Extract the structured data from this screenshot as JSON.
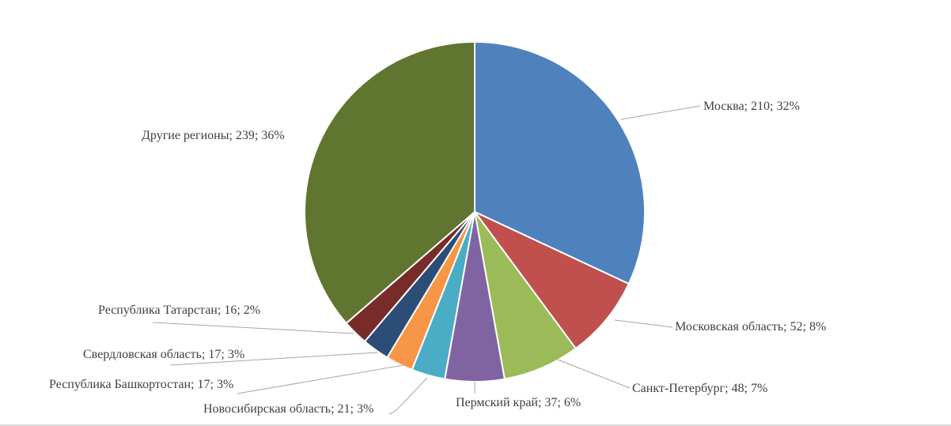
{
  "chart_data": {
    "type": "pie",
    "title": "",
    "start_angle_deg": 0,
    "direction": "clockwise",
    "slices": [
      {
        "label": "Москва",
        "value": 210,
        "percent": "32%",
        "display": "Москва; 210; 32%",
        "color": "#4F81BD"
      },
      {
        "label": "Московская область",
        "value": 52,
        "percent": "8%",
        "display": "Московская область; 52; 8%",
        "color": "#C0504D"
      },
      {
        "label": "Санкт-Петербург",
        "value": 48,
        "percent": "7%",
        "display": "Санкт-Петербург; 48; 7%",
        "color": "#9BBB59"
      },
      {
        "label": "Пермский край",
        "value": 37,
        "percent": "6%",
        "display": "Пермский край; 37; 6%",
        "color": "#8064A2"
      },
      {
        "label": "Новосибирская область",
        "value": 21,
        "percent": "3%",
        "display": "Новосибирская область; 21; 3%",
        "color": "#4BACC6"
      },
      {
        "label": "Республика Башкортостан",
        "value": 17,
        "percent": "3%",
        "display": "Республика Башкортостан; 17; 3%",
        "color": "#F79646"
      },
      {
        "label": "Свердловская область",
        "value": 17,
        "percent": "3%",
        "display": "Свердловская область; 17; 3%",
        "color": "#2C4D75"
      },
      {
        "label": "Республика Татарстан",
        "value": 16,
        "percent": "2%",
        "display": "Республика Татарстан; 16; 2%",
        "color": "#772C2A"
      },
      {
        "label": "Другие регионы",
        "value": 239,
        "percent": "36%",
        "display": "Другие регионы; 239; 36%",
        "color": "#5F7530"
      }
    ],
    "legend": "none"
  }
}
